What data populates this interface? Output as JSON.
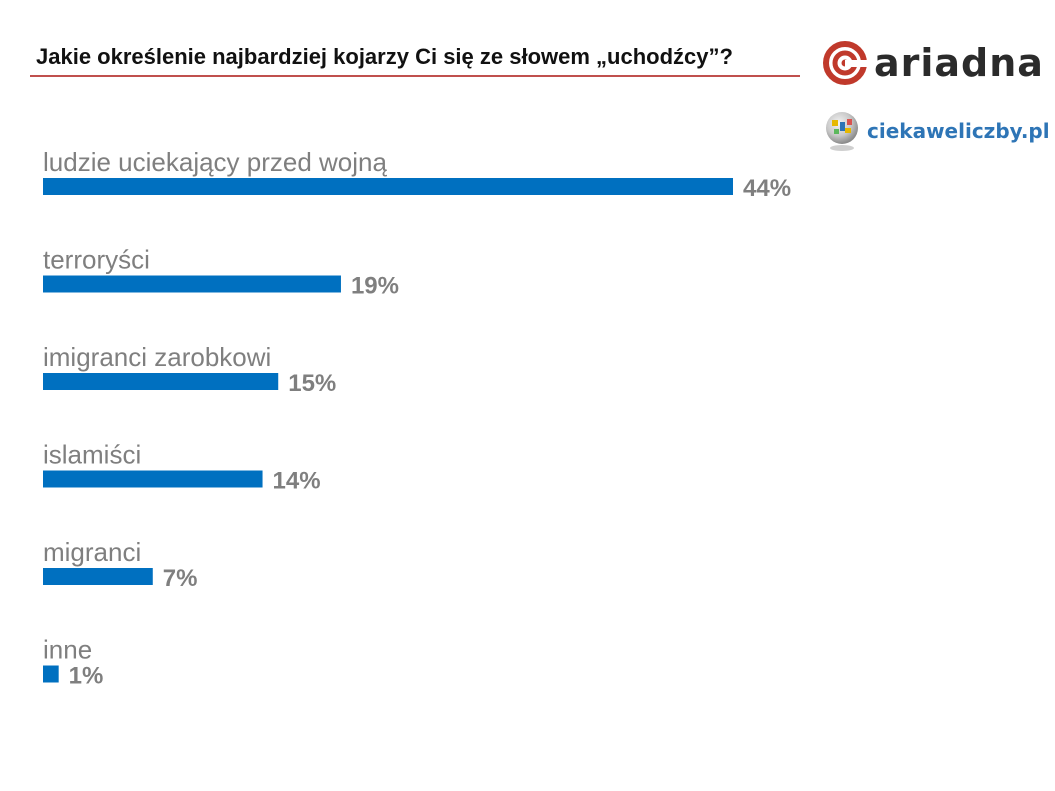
{
  "title": "Jakie określenie najbardziej kojarzy Ci się ze słowem „uchodźcy”?",
  "logos": {
    "ariadna": "ariadna",
    "ciekawe": "ciekaweliczby.pl"
  },
  "colors": {
    "bar": "#0070c0",
    "label": "#7f7f7f",
    "title_rule": "#c0504d",
    "ariadna_accent": "#c0392b",
    "ciekawe_text": "#2e75b6"
  },
  "chart_data": {
    "type": "bar",
    "orientation": "horizontal",
    "categories": [
      "ludzie uciekający przed wojną",
      "terroryści",
      "imigranci zarobkowi",
      "islamiści",
      "migranci",
      "inne"
    ],
    "values": [
      44,
      19,
      15,
      14,
      7,
      1
    ],
    "value_labels": [
      "44%",
      "19%",
      "15%",
      "14%",
      "7%",
      "1%"
    ],
    "unit": "%",
    "xlim": [
      0,
      44
    ],
    "grid": false,
    "legend": "none"
  }
}
